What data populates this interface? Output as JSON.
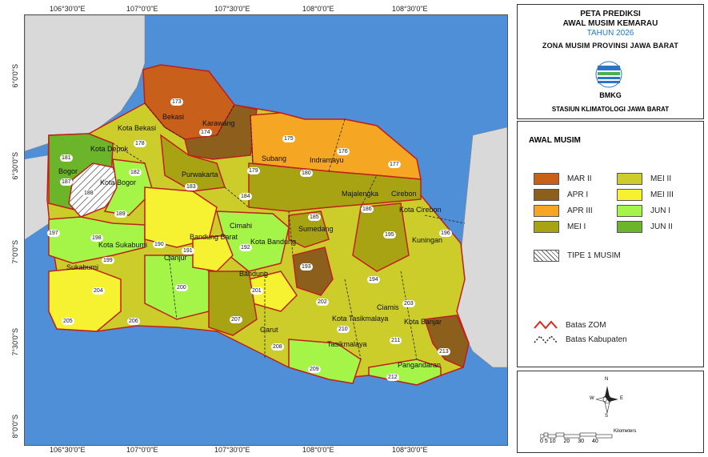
{
  "graticule": {
    "top_lon": [
      "106°30'0\"E",
      "107°0'0\"E",
      "107°30'0\"E",
      "108°0'0\"E",
      "108°30'0\"E"
    ],
    "left_lat": [
      "6°0'0\"S",
      "6°30'0\"S",
      "7°0'0\"S",
      "7°30'0\"S",
      "8°0'0\"S"
    ]
  },
  "title": {
    "line1": "PETA PREDIKSI",
    "line2": "AWAL MUSIM KEMARAU",
    "year": "TAHUN 2026",
    "zone": "ZONA MUSIM PROVINSI JAWA BARAT",
    "agency": "BMKG",
    "station": "STASIUN KLIMATOLOGI JAWA BARAT"
  },
  "legend": {
    "heading": "AWAL MUSIM",
    "classes": [
      {
        "label": "MAR II",
        "color": "#c8601c"
      },
      {
        "label": "APR I",
        "color": "#8c5f1c"
      },
      {
        "label": "APR III",
        "color": "#f5a623"
      },
      {
        "label": "MEI I",
        "color": "#a8a312"
      },
      {
        "label": "MEI II",
        "color": "#cccc2a"
      },
      {
        "label": "MEI III",
        "color": "#f7f231"
      },
      {
        "label": "JUN I",
        "color": "#a5f548"
      },
      {
        "label": "JUN II",
        "color": "#6cb52a"
      }
    ],
    "tipe1": "TIPE 1 MUSIM",
    "batas_zom": "Batas ZOM",
    "batas_kab": "Batas Kabupaten"
  },
  "compass": {
    "n": "N",
    "s": "S",
    "e": "E",
    "w": "W"
  },
  "scalebar": {
    "unit": "Kilometers",
    "ticks": [
      "0",
      "5",
      "10",
      "20",
      "30",
      "40"
    ]
  },
  "places": [
    "Bekasi",
    "Karawang",
    "Kota Bekasi",
    "Kota Depok",
    "Subang",
    "Indramayu",
    "Bogor",
    "Kota Bogor",
    "Purwakarta",
    "Majalengka",
    "Cirebon",
    "Kota Cirebon",
    "Cimahi",
    "Kota Bandung",
    "Sumedang",
    "Bandung Barat",
    "Kota Sukabumi",
    "Sukabumi",
    "Cianjur",
    "Bandung",
    "Kuningan",
    "Ciamis",
    "Kota Tasikmalaya",
    "Kota Banjar",
    "Garut",
    "Tasikmalaya",
    "Pangandaran"
  ],
  "zom_numbers": [
    "173",
    "174",
    "175",
    "176",
    "177",
    "178",
    "179",
    "180",
    "181",
    "182",
    "183",
    "184",
    "185",
    "186",
    "187",
    "188",
    "189",
    "190",
    "191",
    "192",
    "193",
    "194",
    "195",
    "196",
    "197",
    "198",
    "199",
    "200",
    "201",
    "202",
    "203",
    "204",
    "205",
    "206",
    "207",
    "208",
    "209",
    "210",
    "211",
    "212",
    "213"
  ]
}
